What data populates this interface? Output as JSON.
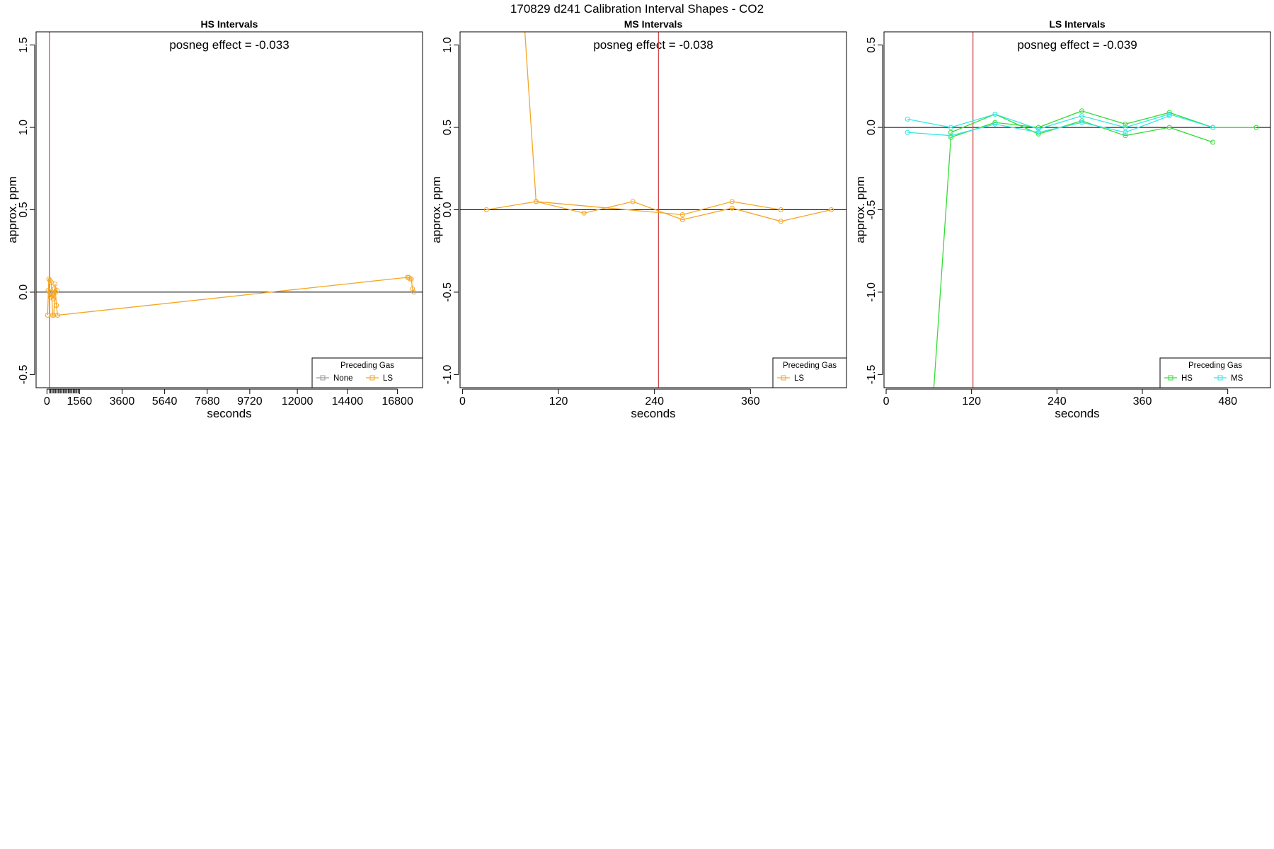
{
  "figure_title": "170829  d241   Calibration Interval Shapes - CO2",
  "chart_data": [
    {
      "type": "line",
      "title": "HS Intervals",
      "annotation": "posneg effect = -0.033",
      "xlabel": "seconds",
      "ylabel": "approx. ppm",
      "xlim": [
        -520,
        18000
      ],
      "ylim": [
        -0.58,
        1.58
      ],
      "xticks": [
        0,
        1560,
        3600,
        5640,
        7680,
        9720,
        12000,
        14400,
        16800
      ],
      "minor_xtick_range": [
        120,
        1560,
        60
      ],
      "yticks": [
        -0.5,
        0.0,
        0.5,
        1.0,
        1.5
      ],
      "ytick_labels": [
        "-0.5",
        "0.0",
        "0.5",
        "1.0",
        "1.5"
      ],
      "hline": 0,
      "vline": 120,
      "legend": {
        "title": "Preceding Gas",
        "position": "bottom-right",
        "entries": [
          "None",
          "LS"
        ],
        "colors": [
          "#999999",
          "#f5a623"
        ]
      },
      "series": [
        {
          "color": "#f5a623",
          "x": [
            30,
            90,
            150,
            210,
            270,
            330,
            390,
            450,
            510,
            17280,
            17340,
            17400,
            17460,
            17520,
            17580
          ],
          "y": [
            -0.14,
            0.08,
            0.07,
            0.06,
            -0.14,
            -0.14,
            0.05,
            -0.08,
            -0.14,
            0.09,
            0.09,
            0.08,
            0.08,
            0.02,
            0.0
          ]
        },
        {
          "color": "#e07f00",
          "x": [
            30,
            90
          ],
          "y": [
            1.58,
            1.58
          ]
        },
        {
          "color": "#f5a623",
          "x": [
            60,
            120,
            180,
            240,
            300,
            360,
            420,
            480
          ],
          "y": [
            0.01,
            0.0,
            -0.03,
            0.0,
            -0.04,
            0.02,
            0.0,
            0.01
          ]
        }
      ]
    },
    {
      "type": "line",
      "title": "MS Intervals",
      "annotation": "posneg effect = -0.038",
      "xlabel": "seconds",
      "ylabel": "approx. ppm",
      "xlim": [
        -3,
        480
      ],
      "ylim": [
        -1.08,
        1.08
      ],
      "xticks": [
        0,
        120,
        240,
        360
      ],
      "yticks": [
        -1.0,
        -0.5,
        0.0,
        0.5,
        1.0
      ],
      "ytick_labels": [
        "-1.0",
        "-0.5",
        "0.0",
        "0.5",
        "1.0"
      ],
      "hline": 0,
      "vline": 245,
      "legend": {
        "title": "Preceding Gas",
        "position": "bottom-right",
        "entries": [
          "LS"
        ],
        "colors": [
          "#f5a623"
        ]
      },
      "series": [
        {
          "color": "#f5a623",
          "x": [
            30,
            92,
            152,
            213,
            275,
            337,
            398,
            461
          ],
          "y": [
            0.0,
            0.05,
            -0.02,
            0.05,
            -0.06,
            0.01,
            -0.07,
            0.0
          ]
        },
        {
          "color": "#f5a623",
          "x": [
            78,
            92,
            275,
            337,
            398
          ],
          "y": [
            1.08,
            0.05,
            -0.03,
            0.05,
            0.0
          ]
        }
      ]
    },
    {
      "type": "line",
      "title": "LS Intervals",
      "annotation": "posneg effect = -0.039",
      "xlabel": "seconds",
      "ylabel": "approx. ppm",
      "xlim": [
        -3,
        540
      ],
      "ylim": [
        -1.58,
        0.58
      ],
      "xticks": [
        0,
        120,
        240,
        360,
        480
      ],
      "yticks": [
        -1.5,
        -1.0,
        -0.5,
        0.0,
        0.5
      ],
      "ytick_labels": [
        "-1.5",
        "-1.0",
        "-0.5",
        "0.0",
        "0.5"
      ],
      "hline": 0,
      "vline": 122,
      "legend": {
        "title": "Preceding Gas",
        "position": "bottom-right",
        "entries": [
          "HS",
          "MS"
        ],
        "colors": [
          "#33dd33",
          "#33e6e6"
        ]
      },
      "series": [
        {
          "color": "#33dd33",
          "x": [
            67,
            91,
            153,
            214,
            275,
            336,
            398,
            459,
            520
          ],
          "y": [
            -1.58,
            -0.06,
            0.03,
            0.0,
            0.1,
            0.02,
            0.09,
            0.0,
            0.0
          ]
        },
        {
          "color": "#33dd33",
          "x": [
            91,
            153,
            214,
            275,
            336,
            398,
            459
          ],
          "y": [
            -0.03,
            0.08,
            -0.04,
            0.04,
            -0.05,
            0.0,
            -0.09
          ]
        },
        {
          "color": "#33e6e6",
          "x": [
            30,
            91,
            153,
            214,
            275,
            336,
            398,
            459
          ],
          "y": [
            0.05,
            0.0,
            0.08,
            -0.01,
            0.07,
            0.0,
            0.08,
            0.0
          ]
        },
        {
          "color": "#33e6e6",
          "x": [
            30,
            91,
            153,
            214,
            275,
            336,
            398
          ],
          "y": [
            -0.03,
            -0.05,
            0.02,
            -0.03,
            0.03,
            -0.03,
            0.07
          ]
        }
      ]
    }
  ]
}
